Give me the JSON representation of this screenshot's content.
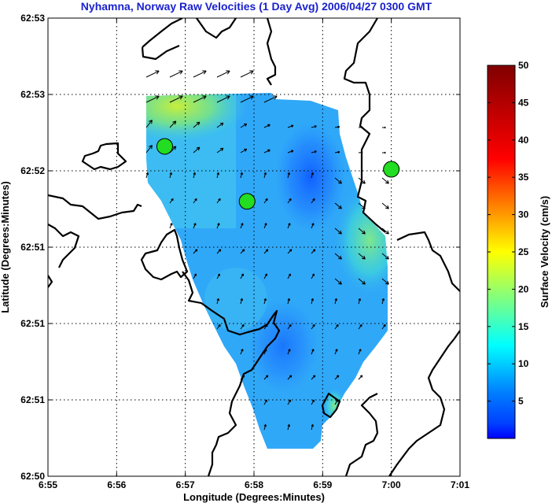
{
  "chart_data": {
    "type": "heatmap",
    "title": "Nyhamna, Norway Raw Velocities (1 Day Avg) 2006/04/27 0300 GMT",
    "xlabel": "Longitude (Degrees:Minutes)",
    "ylabel": "Latitude (Degrees:Minutes)",
    "x_ticks": [
      "6:55",
      "6:56",
      "6:57",
      "6:58",
      "6:59",
      "7:00",
      "7:01"
    ],
    "y_ticks": [
      "62:53",
      "62:53",
      "62:52",
      "62:51",
      "62:51",
      "62:51",
      "62:50"
    ],
    "colorbar": {
      "label": "Surface Velocity (cm/s)",
      "range": [
        0,
        50
      ],
      "ticks": [
        5,
        10,
        15,
        20,
        25,
        30,
        35,
        40,
        45,
        50
      ]
    },
    "grid": true,
    "sites": [
      {
        "lon_min": 56.7,
        "lat_frac": 0.72
      },
      {
        "lon_min": 57.9,
        "lat_frac": 0.6
      },
      {
        "lon_min": 60.0,
        "lat_frac": 0.67
      }
    ],
    "colors": {
      "title": "#1a22cc",
      "site": "#22dd22",
      "coast": "#000000"
    }
  }
}
